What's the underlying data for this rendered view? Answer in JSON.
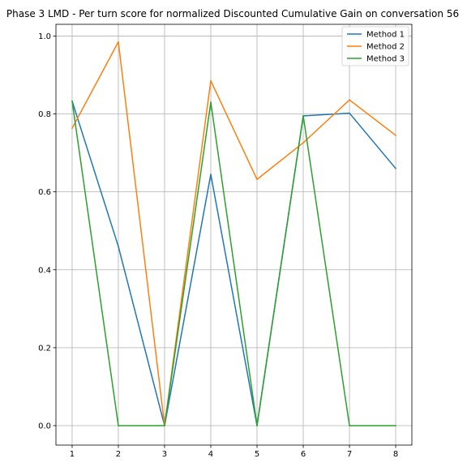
{
  "chart_data": {
    "type": "line",
    "title": "Phase 3 LMD - Per turn score for normalized Discounted Cumulative Gain on conversation 56",
    "xlabel": "",
    "ylabel": "",
    "x": [
      1,
      2,
      3,
      4,
      5,
      6,
      7,
      8
    ],
    "xlim": [
      0.65,
      8.35
    ],
    "ylim": [
      -0.05,
      1.03
    ],
    "xticks": [
      "1",
      "2",
      "3",
      "4",
      "5",
      "6",
      "7",
      "8"
    ],
    "yticks": [
      "0.0",
      "0.2",
      "0.4",
      "0.6",
      "0.8",
      "1.0"
    ],
    "grid": true,
    "legend_position": "top-right",
    "series": [
      {
        "name": "Method 1",
        "color": "#1f77b4",
        "values": [
          0.833,
          0.46,
          0.0,
          0.645,
          0.0,
          0.795,
          0.802,
          0.66
        ]
      },
      {
        "name": "Method 2",
        "color": "#ff7f0e",
        "values": [
          0.763,
          0.985,
          0.0,
          0.885,
          0.632,
          0.726,
          0.836,
          0.745
        ]
      },
      {
        "name": "Method 3",
        "color": "#2ca02c",
        "values": [
          0.833,
          0.0,
          0.0,
          0.83,
          0.0,
          0.795,
          0.0,
          0.0
        ]
      }
    ]
  }
}
